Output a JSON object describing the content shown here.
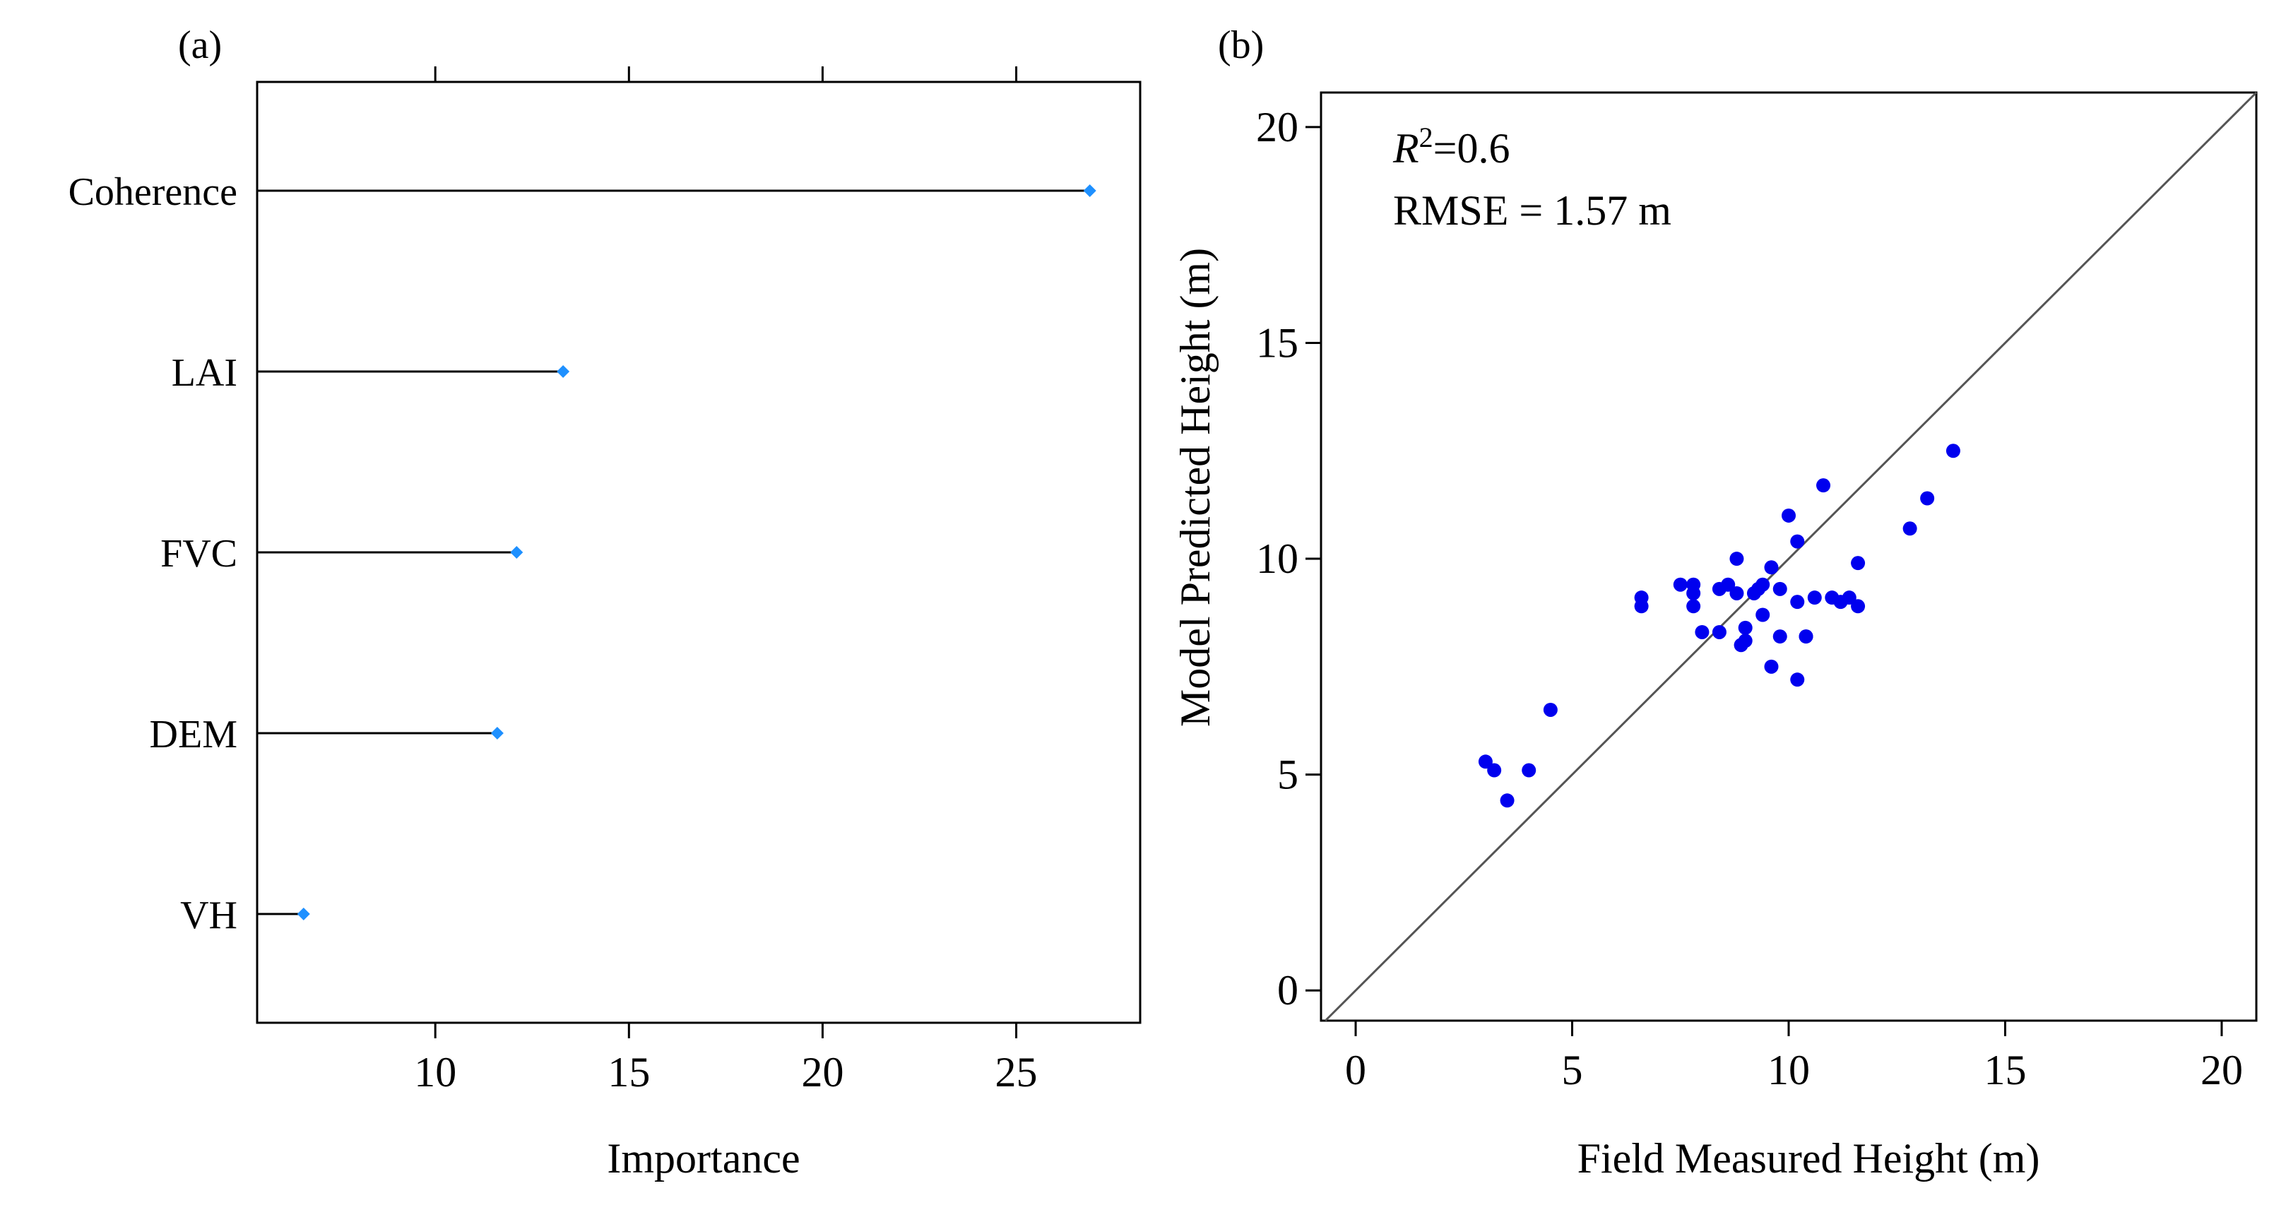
{
  "colors": {
    "marker_a": "#1E90FF",
    "marker_b": "#0000EE",
    "line": "#000000",
    "background": "#FFFFFF"
  },
  "chart_data": [
    {
      "panel_label": "(a)",
      "type": "dot",
      "orientation": "horizontal",
      "categories": [
        "Coherence",
        "LAI",
        "FVC",
        "DEM",
        "VH"
      ],
      "values": [
        26.9,
        13.3,
        12.1,
        11.6,
        6.6
      ],
      "xlabel": "Importance",
      "ylabel": "",
      "xlim": [
        5.4,
        28.2
      ],
      "xticks": [
        10,
        15,
        20,
        25
      ],
      "xtick_labels": [
        "10",
        "15",
        "20",
        "25"
      ],
      "grid": false
    },
    {
      "panel_label": "(b)",
      "type": "scatter",
      "xlabel": "Field Measured Height (m)",
      "ylabel": "Model Predicted Height (m)",
      "xlim": [
        -0.8,
        20.8
      ],
      "ylim": [
        -0.7,
        20.8
      ],
      "xticks": [
        0,
        5,
        10,
        15,
        20
      ],
      "xtick_labels": [
        "0",
        "5",
        "10",
        "15",
        "20"
      ],
      "yticks": [
        0,
        5,
        10,
        15,
        20
      ],
      "ytick_labels": [
        "0",
        "5",
        "10",
        "15",
        "20"
      ],
      "reference_line": "1:1",
      "annotation_r2": {
        "symbol": "R",
        "superscript": "2",
        "value": "=0.6"
      },
      "annotation_rmse": "RMSE = 1.57 m",
      "grid": false,
      "points": [
        {
          "x": 3.0,
          "y": 5.3
        },
        {
          "x": 3.2,
          "y": 5.1
        },
        {
          "x": 3.5,
          "y": 4.4
        },
        {
          "x": 4.0,
          "y": 5.1
        },
        {
          "x": 4.5,
          "y": 6.5
        },
        {
          "x": 6.6,
          "y": 9.1
        },
        {
          "x": 6.6,
          "y": 8.9
        },
        {
          "x": 7.5,
          "y": 9.4
        },
        {
          "x": 7.8,
          "y": 9.4
        },
        {
          "x": 7.8,
          "y": 9.2
        },
        {
          "x": 7.8,
          "y": 8.9
        },
        {
          "x": 8.0,
          "y": 8.3
        },
        {
          "x": 8.4,
          "y": 8.3
        },
        {
          "x": 8.4,
          "y": 9.3
        },
        {
          "x": 8.6,
          "y": 9.4
        },
        {
          "x": 8.8,
          "y": 9.2
        },
        {
          "x": 8.8,
          "y": 10.0
        },
        {
          "x": 8.9,
          "y": 8.0
        },
        {
          "x": 9.0,
          "y": 8.1
        },
        {
          "x": 9.0,
          "y": 8.4
        },
        {
          "x": 9.2,
          "y": 9.2
        },
        {
          "x": 9.3,
          "y": 9.3
        },
        {
          "x": 9.4,
          "y": 8.7
        },
        {
          "x": 9.4,
          "y": 9.4
        },
        {
          "x": 9.6,
          "y": 9.8
        },
        {
          "x": 9.6,
          "y": 7.5
        },
        {
          "x": 9.8,
          "y": 8.2
        },
        {
          "x": 9.8,
          "y": 9.3
        },
        {
          "x": 10.0,
          "y": 11.0
        },
        {
          "x": 10.2,
          "y": 10.4
        },
        {
          "x": 10.2,
          "y": 9.0
        },
        {
          "x": 10.2,
          "y": 7.2
        },
        {
          "x": 10.4,
          "y": 8.2
        },
        {
          "x": 10.4,
          "y": 8.2
        },
        {
          "x": 10.6,
          "y": 9.1
        },
        {
          "x": 10.8,
          "y": 11.7
        },
        {
          "x": 11.0,
          "y": 9.1
        },
        {
          "x": 11.2,
          "y": 9.0
        },
        {
          "x": 11.4,
          "y": 9.1
        },
        {
          "x": 11.6,
          "y": 9.9
        },
        {
          "x": 11.6,
          "y": 8.9
        },
        {
          "x": 12.8,
          "y": 10.7
        },
        {
          "x": 13.2,
          "y": 11.4
        },
        {
          "x": 13.8,
          "y": 12.5
        }
      ]
    }
  ]
}
